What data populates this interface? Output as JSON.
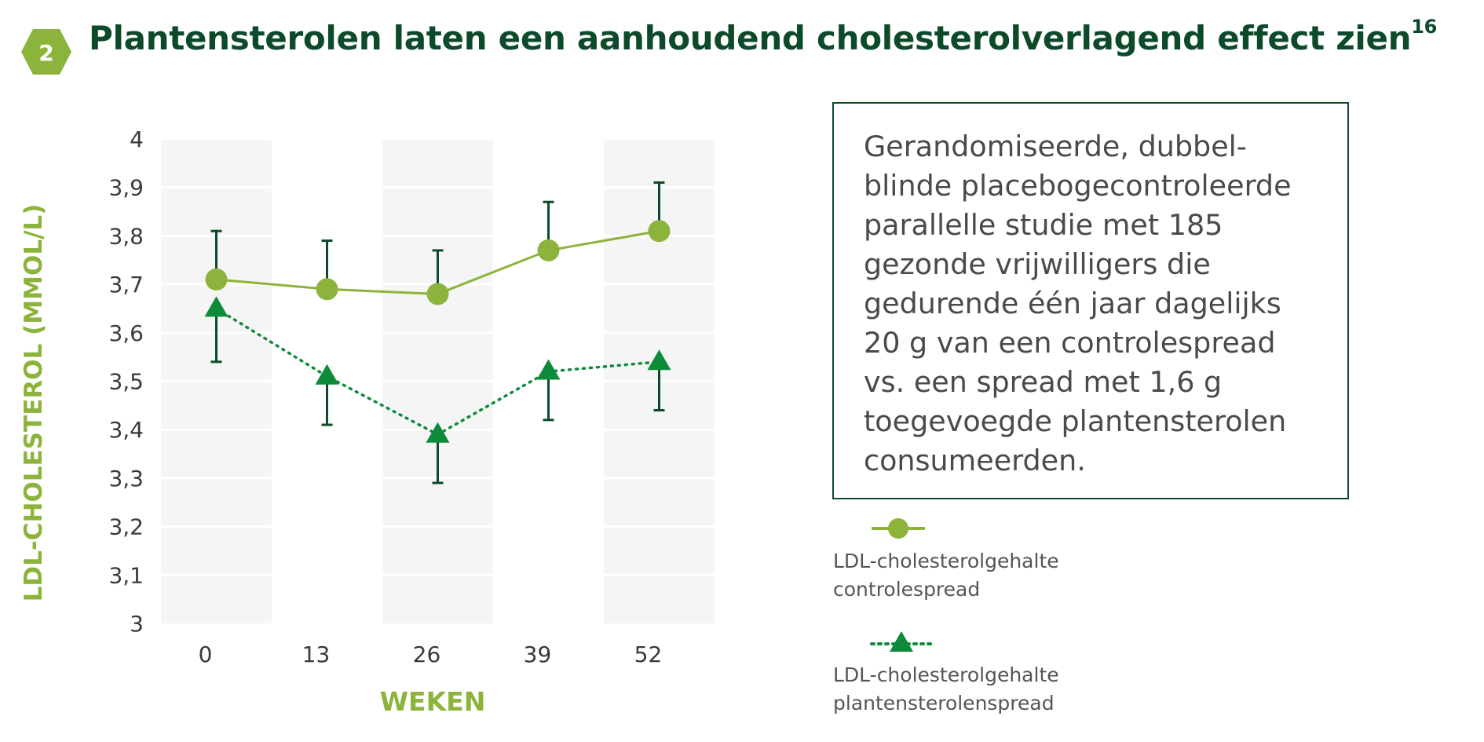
{
  "header": {
    "badge_number": "2",
    "title": "Plantensterolen laten een aanhoudend cholesterolverlagend effect zien",
    "title_reference": "16"
  },
  "colors": {
    "dark_green": "#0c4a2a",
    "light_green": "#8cb43c",
    "bright_green": "#0d8a3a",
    "error_bar": "#0d4a28",
    "band_gray": "#f5f5f5",
    "text_gray": "#4a4a4a"
  },
  "info_box": {
    "text": "Gerandomiseerde, dubbel-\nblinde placebogecontroleerde\nparallelle studie met 185\ngezonde vrijwilligers die\ngedurende één jaar dagelijks\n20 g van een controlespread\nvs. een spread met 1,6 g\ntoegevoegde plantensterolen\nconsumeerden."
  },
  "chart_data": {
    "type": "line",
    "title": "",
    "xlabel": "WEKEN",
    "ylabel": "LDL-CHOLESTEROL (MMOL/L)",
    "x": [
      0,
      13,
      26,
      39,
      52
    ],
    "x_tick_labels": [
      "0",
      "13",
      "26",
      "39",
      "52"
    ],
    "ylim": [
      3,
      4
    ],
    "y_ticks": [
      3,
      3.1,
      3.2,
      3.3,
      3.4,
      3.5,
      3.6,
      3.7,
      3.8,
      3.9,
      4
    ],
    "y_tick_labels": [
      "3",
      "3,1",
      "3,2",
      "3,3",
      "3,4",
      "3,5",
      "3,6",
      "3,7",
      "3,8",
      "3,9",
      "4"
    ],
    "grid": "horizontal gridlines with alternating vertical bands",
    "legend_position": "right",
    "series": [
      {
        "name": "LDL-cholesterolgehalte\ncontrolespread",
        "marker": "circle",
        "line_style": "solid",
        "color": "#8cb43c",
        "values": [
          3.71,
          3.69,
          3.68,
          3.77,
          3.81
        ],
        "error_bar_direction": "up",
        "error_bar_ends": [
          3.81,
          3.79,
          3.77,
          3.87,
          3.91
        ]
      },
      {
        "name": "LDL-cholesterolgehalte\nplantensterolenspread",
        "marker": "triangle",
        "line_style": "dotted",
        "color": "#0d8a3a",
        "values": [
          3.65,
          3.51,
          3.39,
          3.52,
          3.54
        ],
        "error_bar_direction": "down",
        "error_bar_ends": [
          3.54,
          3.41,
          3.29,
          3.42,
          3.44
        ]
      }
    ]
  }
}
